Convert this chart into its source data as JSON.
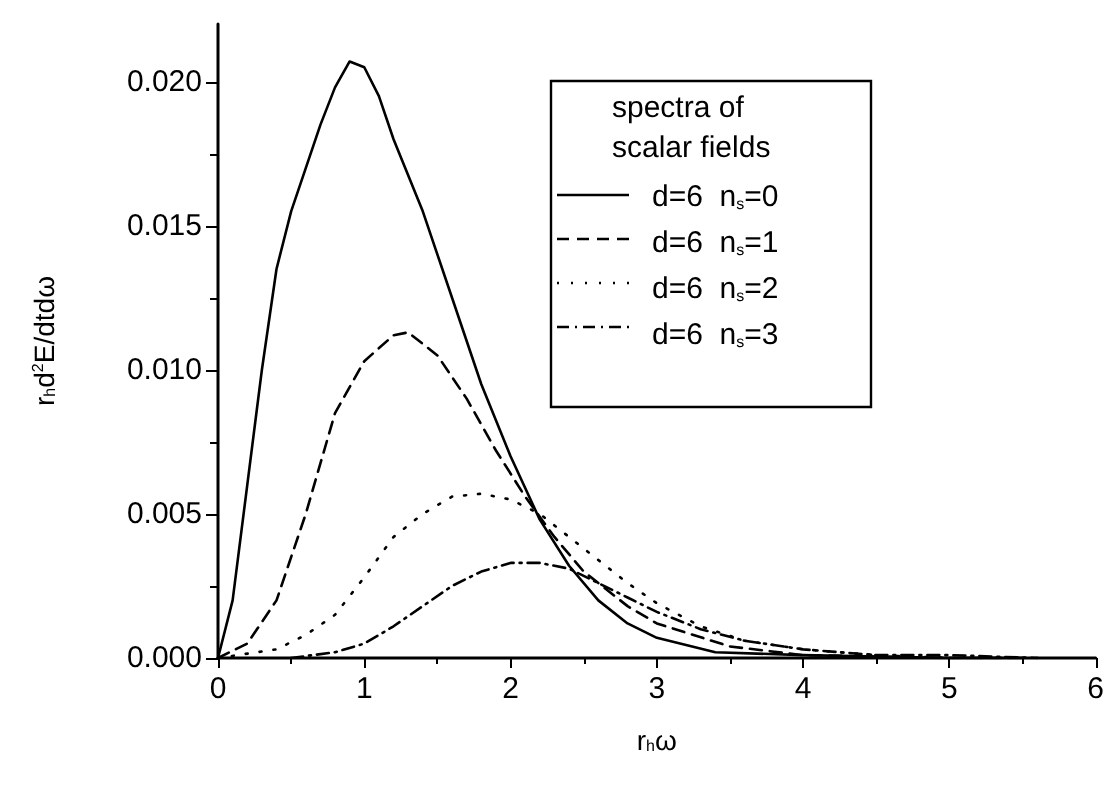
{
  "chart_data": {
    "type": "line",
    "xlabel": "r$_{h}$ω",
    "ylabel": "r$_{h}$d$^{2}$E/dtdω",
    "legend_title": "spectra of scalar fields",
    "legend": "top right",
    "marker": "none",
    "grid": false,
    "xlim": [
      0,
      6
    ],
    "xticks": [
      0,
      1,
      2,
      3,
      4,
      5,
      6
    ],
    "ylim": [
      0,
      0.022
    ],
    "yticks": [
      {
        "value": 0,
        "label": "0.000"
      },
      {
        "value": 0.005,
        "label": "0.005"
      },
      {
        "value": 0.01,
        "label": "0.010"
      },
      {
        "value": 0.015,
        "label": "0.015"
      },
      {
        "value": 0.02,
        "label": "0.020"
      }
    ],
    "series": [
      {
        "name": "d=6  n$_{s}$=0",
        "color": "#000000",
        "line_style": "solid",
        "x": [
          0,
          0.1,
          0.2,
          0.3,
          0.4,
          0.5,
          0.6,
          0.7,
          0.8,
          0.9,
          1.0,
          1.1,
          1.2,
          1.4,
          1.6,
          1.8,
          2.0,
          2.2,
          2.4,
          2.6,
          2.8,
          3.0,
          3.4,
          4.0,
          5.0,
          5.5
        ],
        "values": [
          0,
          0.002,
          0.006,
          0.01,
          0.0135,
          0.0155,
          0.017,
          0.0185,
          0.0198,
          0.0207,
          0.0205,
          0.0195,
          0.018,
          0.0155,
          0.0125,
          0.0095,
          0.007,
          0.0048,
          0.0032,
          0.002,
          0.0012,
          0.0007,
          0.0002,
          0.0001,
          0,
          0
        ]
      },
      {
        "name": "d=6  n$_{s}$=1",
        "color": "#000000",
        "line_style": "dashed",
        "x": [
          0,
          0.2,
          0.4,
          0.6,
          0.8,
          1.0,
          1.2,
          1.3,
          1.5,
          1.7,
          1.9,
          2.1,
          2.3,
          2.5,
          2.8,
          3.0,
          3.5,
          4.0,
          5.0,
          5.5
        ],
        "values": [
          0,
          0.0005,
          0.002,
          0.005,
          0.0085,
          0.0103,
          0.0112,
          0.0113,
          0.0105,
          0.009,
          0.0072,
          0.0056,
          0.0042,
          0.003,
          0.0018,
          0.0012,
          0.0004,
          0.0001,
          0,
          0
        ]
      },
      {
        "name": "d=6  n$_{s}$=2",
        "color": "#000000",
        "line_style": "dotted",
        "x": [
          0,
          0.4,
          0.6,
          0.8,
          1.0,
          1.2,
          1.4,
          1.6,
          1.8,
          2.0,
          2.2,
          2.4,
          2.6,
          2.8,
          3.0,
          3.3,
          3.6,
          4.0,
          4.5,
          5.0,
          5.6
        ],
        "values": [
          0,
          0.0003,
          0.0008,
          0.0015,
          0.0028,
          0.0042,
          0.005,
          0.0056,
          0.0057,
          0.0055,
          0.005,
          0.0042,
          0.0034,
          0.0026,
          0.0019,
          0.0011,
          0.0006,
          0.0003,
          0.0001,
          0,
          0
        ]
      },
      {
        "name": "d=6  n$_{s}$=3",
        "color": "#000000",
        "line_style": "dashdot",
        "x": [
          0.5,
          0.8,
          1.0,
          1.2,
          1.4,
          1.6,
          1.8,
          2.0,
          2.2,
          2.4,
          2.6,
          2.8,
          3.0,
          3.3,
          3.6,
          4.0,
          4.5,
          5.0,
          5.6
        ],
        "values": [
          0,
          0.0002,
          0.0005,
          0.0011,
          0.0018,
          0.0025,
          0.003,
          0.0033,
          0.0033,
          0.0031,
          0.0026,
          0.0021,
          0.0016,
          0.001,
          0.0006,
          0.0003,
          0.0001,
          0.0001,
          0
        ]
      }
    ]
  }
}
